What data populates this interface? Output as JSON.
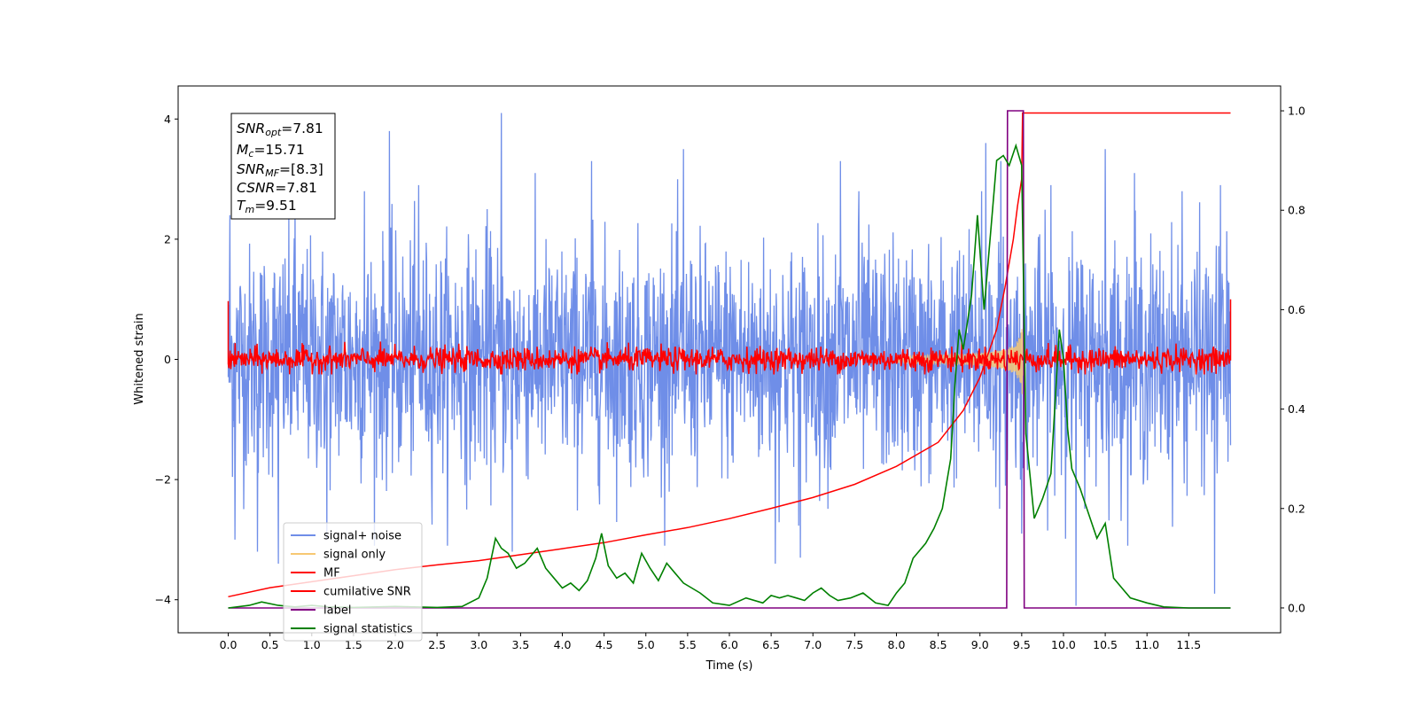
{
  "chart_data": {
    "type": "line",
    "xlabel": "Time (s)",
    "ylabel": "Whitened strain",
    "xlim": [
      -0.6,
      12.6
    ],
    "ylim": [
      -4.55,
      4.55
    ],
    "y2lim": [
      -0.05,
      1.05
    ],
    "x_ticks": [
      "0.0",
      "0.5",
      "1.0",
      "1.5",
      "2.0",
      "2.5",
      "3.0",
      "3.5",
      "4.0",
      "4.5",
      "5.0",
      "5.5",
      "6.0",
      "6.5",
      "7.0",
      "7.5",
      "8.0",
      "8.5",
      "9.0",
      "9.5",
      "10.0",
      "10.5",
      "11.0",
      "11.5"
    ],
    "y_ticks": [
      "4",
      "2",
      "0",
      "−2",
      "−4"
    ],
    "y2_ticks": [
      "1.0",
      "0.8",
      "0.6",
      "0.4",
      "0.2",
      "0.0"
    ],
    "grid": false,
    "legend_position": "lower-left",
    "legend": [
      {
        "label": "signal+ noise",
        "color": "#6f8ee8"
      },
      {
        "label": "signal only",
        "color": "#f7c873"
      },
      {
        "label": "MF",
        "color": "#ff0000"
      },
      {
        "label": "cumilative SNR",
        "color": "#ff0000"
      },
      {
        "label": "label",
        "color": "#800080"
      },
      {
        "label": "signal statistics",
        "color": "#008000"
      }
    ],
    "info_box": {
      "snr_opt": {
        "sym": "SNR",
        "sub": "opt",
        "value": "=7.81"
      },
      "mc": {
        "sym": "M",
        "sub": "c",
        "value": "=15.71"
      },
      "snr_mf": {
        "sym": "SNR",
        "sub": "MF",
        "value": "=[8.3]"
      },
      "csnr": {
        "sym": "CSNR",
        "sub": "",
        "value": "=7.81"
      },
      "tm": {
        "sym": "T",
        "sub": "m",
        "value": "=9.51"
      }
    },
    "series": [
      {
        "name": "signal+ noise",
        "axis": "left",
        "kind": "noise",
        "x_range": [
          0.0,
          12.0
        ],
        "std": 0.95,
        "peaks": [
          [
            0.02,
            2.4
          ],
          [
            0.08,
            -3.0
          ],
          [
            0.35,
            -3.2
          ],
          [
            0.6,
            -3.4
          ],
          [
            0.8,
            2.6
          ],
          [
            1.18,
            -3.0
          ],
          [
            1.63,
            2.8
          ],
          [
            1.93,
            3.8
          ],
          [
            2.28,
            2.9
          ],
          [
            3.1,
            2.5
          ],
          [
            3.27,
            4.1
          ],
          [
            3.4,
            -3.2
          ],
          [
            4.35,
            3.3
          ],
          [
            5.45,
            3.5
          ],
          [
            6.55,
            -3.4
          ],
          [
            6.85,
            -3.3
          ],
          [
            7.33,
            3.3
          ],
          [
            7.55,
            2.8
          ],
          [
            9.02,
            2.8
          ],
          [
            9.07,
            3.6
          ],
          [
            9.25,
            3.3
          ],
          [
            9.5,
            -2.9
          ],
          [
            9.85,
            2.9
          ],
          [
            10.15,
            -4.1
          ],
          [
            10.5,
            3.5
          ],
          [
            10.85,
            3.1
          ],
          [
            11.42,
            2.8
          ],
          [
            11.81,
            -3.9
          ],
          [
            11.88,
            2.9
          ]
        ]
      },
      {
        "name": "signal only",
        "axis": "left",
        "kind": "chirp",
        "x_range": [
          8.0,
          9.52
        ],
        "amp_max": 0.9
      },
      {
        "name": "MF",
        "axis": "left",
        "kind": "noise",
        "x_range": [
          0.0,
          12.0
        ],
        "std": 0.1,
        "edge_values": [
          0.97,
          1.0
        ]
      },
      {
        "name": "cumilative SNR",
        "axis": "left",
        "kind": "curve",
        "x": [
          0.0,
          0.5,
          1.0,
          1.5,
          2.0,
          2.5,
          3.0,
          3.5,
          4.0,
          4.5,
          5.0,
          5.5,
          6.0,
          6.5,
          7.0,
          7.5,
          8.0,
          8.5,
          8.8,
          9.0,
          9.2,
          9.3,
          9.4,
          9.45,
          9.5,
          9.51,
          12.0
        ],
        "y": [
          -3.95,
          -3.8,
          -3.7,
          -3.6,
          -3.5,
          -3.42,
          -3.35,
          -3.25,
          -3.15,
          -3.05,
          -2.92,
          -2.8,
          -2.65,
          -2.48,
          -2.3,
          -2.08,
          -1.78,
          -1.38,
          -0.85,
          -0.3,
          0.5,
          1.2,
          2.0,
          2.55,
          3.0,
          4.1,
          4.1
        ]
      },
      {
        "name": "label",
        "axis": "right",
        "kind": "step",
        "x": [
          0.0,
          9.32,
          9.33,
          9.52,
          9.53,
          12.0
        ],
        "y": [
          0.0,
          0.0,
          1.0,
          1.0,
          0.0,
          0.0
        ]
      },
      {
        "name": "signal statistics",
        "axis": "right",
        "kind": "curve",
        "x": [
          0.0,
          0.25,
          0.4,
          0.6,
          0.8,
          1.0,
          1.2,
          1.5,
          2.0,
          2.5,
          2.8,
          3.0,
          3.1,
          3.2,
          3.27,
          3.35,
          3.45,
          3.55,
          3.7,
          3.8,
          3.9,
          4.0,
          4.1,
          4.2,
          4.3,
          4.4,
          4.47,
          4.55,
          4.65,
          4.75,
          4.85,
          4.95,
          5.05,
          5.15,
          5.25,
          5.35,
          5.45,
          5.55,
          5.65,
          5.8,
          6.0,
          6.2,
          6.4,
          6.5,
          6.6,
          6.7,
          6.8,
          6.9,
          7.0,
          7.1,
          7.2,
          7.3,
          7.45,
          7.6,
          7.75,
          7.9,
          8.0,
          8.1,
          8.2,
          8.35,
          8.45,
          8.55,
          8.65,
          8.7,
          8.75,
          8.8,
          8.9,
          8.97,
          9.05,
          9.15,
          9.2,
          9.28,
          9.35,
          9.43,
          9.5,
          9.55,
          9.65,
          9.75,
          9.85,
          9.95,
          10.0,
          10.05,
          10.1,
          10.2,
          10.3,
          10.4,
          10.5,
          10.6,
          10.8,
          11.0,
          11.2,
          11.5,
          12.0
        ],
        "y": [
          0.0,
          0.005,
          0.012,
          0.005,
          0.002,
          0.005,
          0.002,
          0.001,
          0.003,
          0.001,
          0.003,
          0.02,
          0.06,
          0.14,
          0.12,
          0.11,
          0.08,
          0.09,
          0.12,
          0.08,
          0.06,
          0.04,
          0.05,
          0.035,
          0.055,
          0.1,
          0.15,
          0.085,
          0.06,
          0.07,
          0.05,
          0.11,
          0.08,
          0.055,
          0.09,
          0.07,
          0.05,
          0.04,
          0.03,
          0.01,
          0.005,
          0.02,
          0.01,
          0.025,
          0.02,
          0.025,
          0.02,
          0.015,
          0.03,
          0.04,
          0.025,
          0.015,
          0.02,
          0.03,
          0.01,
          0.005,
          0.03,
          0.05,
          0.1,
          0.13,
          0.16,
          0.2,
          0.3,
          0.45,
          0.56,
          0.52,
          0.63,
          0.79,
          0.6,
          0.8,
          0.9,
          0.91,
          0.89,
          0.93,
          0.89,
          0.35,
          0.18,
          0.22,
          0.27,
          0.56,
          0.5,
          0.36,
          0.28,
          0.24,
          0.19,
          0.14,
          0.17,
          0.06,
          0.02,
          0.01,
          0.002,
          0.0,
          0.0
        ]
      }
    ]
  }
}
